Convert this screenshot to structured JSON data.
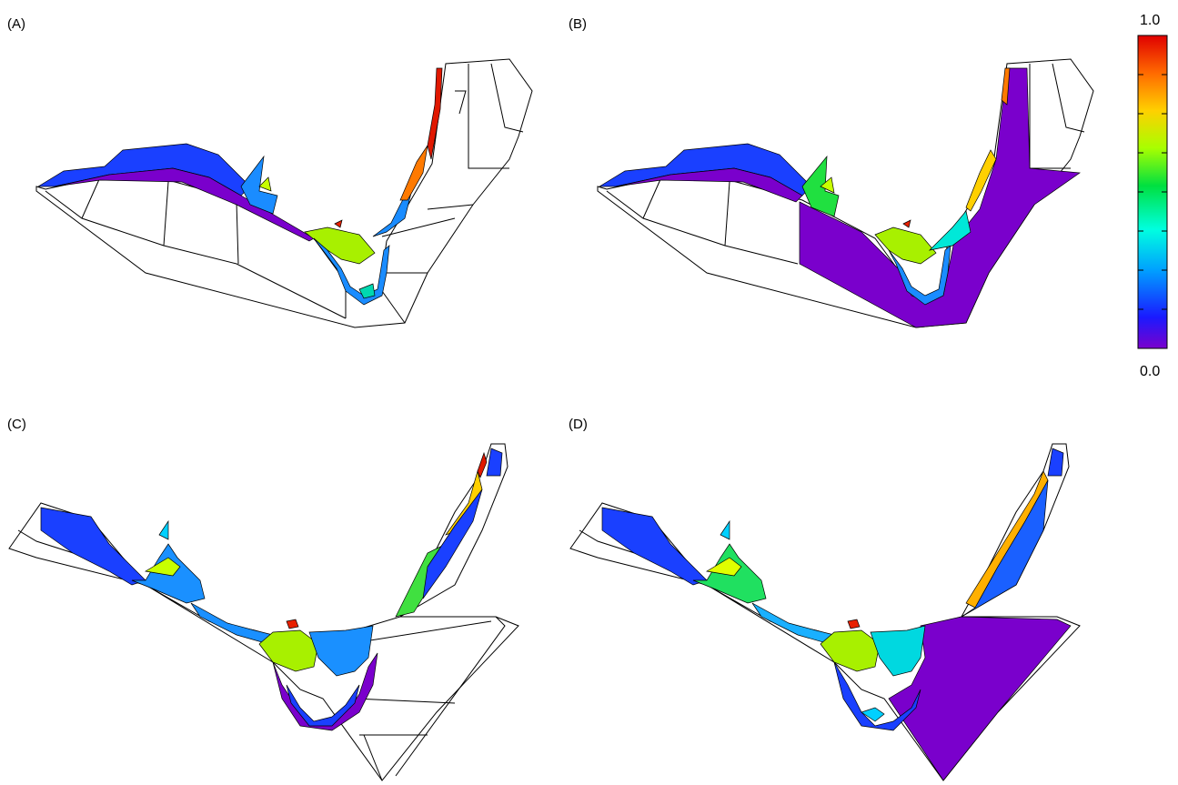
{
  "panels": [
    {
      "label": "(A)"
    },
    {
      "label": "(B)"
    },
    {
      "label": "(C)"
    },
    {
      "label": "(D)"
    }
  ],
  "colorbar": {
    "max_label": "1.0",
    "min_label": "0.0",
    "colors": [
      "#7a00cc",
      "#1a1aff",
      "#00a0ff",
      "#00ffe0",
      "#00e040",
      "#a8ff00",
      "#ffd000",
      "#ff6a00",
      "#e00000"
    ]
  }
}
